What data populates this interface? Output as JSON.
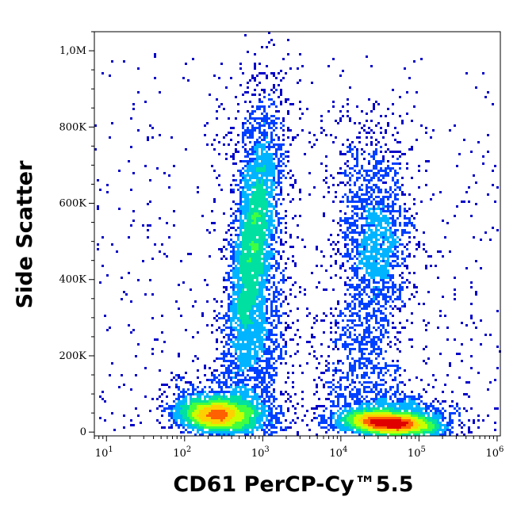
{
  "chart_data": {
    "type": "scatter",
    "subtype": "flow-cytometry-density-dot-plot",
    "title": "",
    "xlabel": "CD61 PerCP-Cy™5.5",
    "ylabel": "Side Scatter",
    "x_scale": "log",
    "xlim": [
      7,
      1100000
    ],
    "ylim": [
      -10000,
      1050000
    ],
    "x_ticks": [
      {
        "value": 10,
        "base": "10",
        "exp": "1"
      },
      {
        "value": 100,
        "base": "10",
        "exp": "2"
      },
      {
        "value": 1000,
        "base": "10",
        "exp": "3"
      },
      {
        "value": 10000,
        "base": "10",
        "exp": "4"
      },
      {
        "value": 100000,
        "base": "10",
        "exp": "5"
      },
      {
        "value": 1000000,
        "base": "10",
        "exp": "6"
      }
    ],
    "y_ticks": [
      {
        "value": 0,
        "label": "0"
      },
      {
        "value": 200000,
        "label": "200K"
      },
      {
        "value": 400000,
        "label": "400K"
      },
      {
        "value": 600000,
        "label": "600K"
      },
      {
        "value": 800000,
        "label": "800K"
      },
      {
        "value": 1000000,
        "label": "1,0M"
      }
    ],
    "colormap": [
      "#0000c8",
      "#0040ff",
      "#00b4ff",
      "#00e0a0",
      "#40ff40",
      "#c8ff00",
      "#ffd000",
      "#ff6000",
      "#e00000"
    ],
    "populations": [
      {
        "x": 250,
        "y": 50000,
        "weight": 1.0
      },
      {
        "x": 750,
        "y": 500000,
        "weight": 0.9
      },
      {
        "x": 40000,
        "y": 25000,
        "weight": 1.0
      },
      {
        "x": 30000,
        "y": 470000,
        "weight": 0.55
      },
      {
        "x": 700,
        "y": 200000,
        "weight": 0.35
      },
      {
        "x": 20000,
        "y": 150000,
        "weight": 0.3
      }
    ],
    "grid": false,
    "legend": "none"
  }
}
